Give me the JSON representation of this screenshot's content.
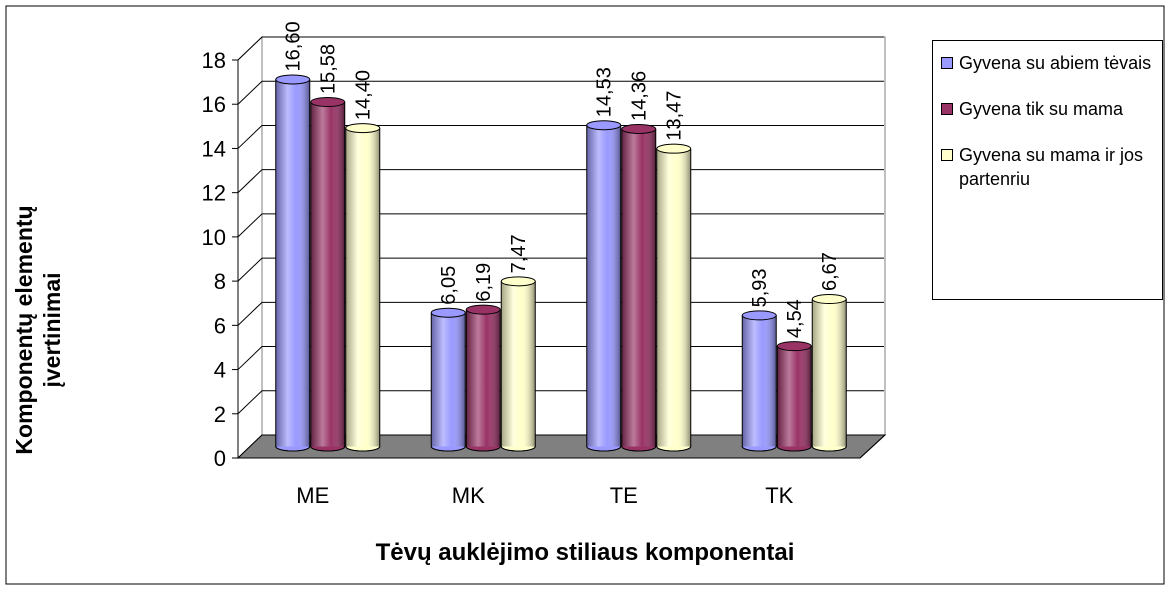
{
  "chart_data": {
    "type": "bar3d",
    "x_label": "Tėvų auklėjimo stiliaus komponentai",
    "y_label": "Komponentų elementų įvertinimai",
    "categories": [
      "ME",
      "MK",
      "TE",
      "TK"
    ],
    "series": [
      {
        "name": "Gyvena su abiem tėvais",
        "color": "#9999ff",
        "values": [
          16.6,
          6.05,
          14.53,
          5.93
        ],
        "value_labels": [
          "16,60",
          "6,05",
          "14,53",
          "5,93"
        ]
      },
      {
        "name": "Gyvena tik su mama",
        "color": "#993366",
        "values": [
          15.58,
          6.19,
          14.36,
          4.54
        ],
        "value_labels": [
          "15,58",
          "6,19",
          "14,36",
          "4,54"
        ]
      },
      {
        "name": "Gyvena su mama ir jos partenriu",
        "color": "#ffffcc",
        "values": [
          14.4,
          7.47,
          13.47,
          6.67
        ],
        "value_labels": [
          "14,40",
          "7,47",
          "13,47",
          "6,67"
        ]
      }
    ],
    "ylim": [
      0,
      18
    ],
    "yticks": [
      0,
      2,
      4,
      6,
      8,
      10,
      12,
      14,
      16,
      18
    ],
    "grid": true,
    "legend": "right"
  }
}
